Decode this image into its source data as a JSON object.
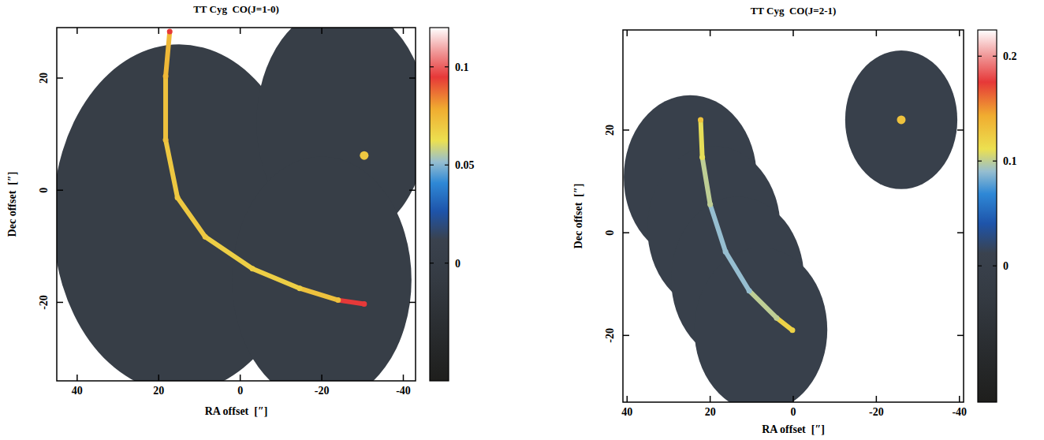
{
  "chart_data": [
    {
      "type": "heatmap",
      "title": "TT Cyg  CO(J=1-0)",
      "x_label": "RA offset  [″]",
      "y_label": "Dec offset  [″]",
      "xlim": [
        45,
        -43
      ],
      "ylim": [
        -34,
        29
      ],
      "xticks": [
        40,
        20,
        0,
        -20,
        -40
      ],
      "yticks": [
        20,
        0,
        -20
      ],
      "colorbar_lim": [
        -0.06,
        0.12
      ],
      "colorbar_ticks": [
        0,
        0.05,
        0.1
      ],
      "coverage": [
        {
          "x": 15,
          "y": -5,
          "r": 31
        },
        {
          "x": -25,
          "y": 12,
          "r": 21
        },
        {
          "x": -20,
          "y": -16,
          "r": 22
        }
      ],
      "shell": {
        "x": [
          17.3,
          18.3,
          18.3,
          15.4,
          8.6,
          -3,
          -14.6,
          -24,
          -30.4
        ],
        "y": [
          28.3,
          20.3,
          9,
          -1.3,
          -8.3,
          -14,
          -17.5,
          -19.6,
          -20.3
        ],
        "intensity": [
          0.095,
          0.075,
          0.072,
          0.07,
          0.07,
          0.068,
          0.068,
          0.072,
          0.095
        ]
      },
      "point_source": {
        "x": -30.4,
        "y": 6.2,
        "intensity": 0.07
      }
    },
    {
      "type": "heatmap",
      "title": "TT Cyg  CO(J=2-1)",
      "x_label": "RA offset  [″]",
      "y_label": "Dec offset  [″]",
      "xlim": [
        41,
        -41
      ],
      "ylim": [
        -33,
        39.5
      ],
      "xticks": [
        40,
        20,
        0,
        -20,
        -40
      ],
      "yticks": [
        20,
        0,
        -20
      ],
      "colorbar_lim": [
        -0.13,
        0.225
      ],
      "colorbar_ticks": [
        0,
        0.1,
        0.2
      ],
      "coverage": [
        {
          "x": 24.8,
          "y": 10.8,
          "r": 16
        },
        {
          "x": 19.1,
          "y": 0.9,
          "r": 16
        },
        {
          "x": 13.4,
          "y": -9,
          "r": 16
        },
        {
          "x": 7.8,
          "y": -18.9,
          "r": 16
        },
        {
          "x": -26,
          "y": 22,
          "r": 13.5
        }
      ],
      "shell": {
        "x": [
          22.3,
          21.9,
          20,
          16.3,
          10.6,
          4,
          0.2
        ],
        "y": [
          22,
          14.7,
          5.5,
          -3.7,
          -11.3,
          -16.6,
          -19
        ],
        "intensity": [
          0.13,
          0.11,
          0.1,
          0.09,
          0.09,
          0.1,
          0.12
        ]
      },
      "point_source": {
        "x": -26,
        "y": 22,
        "intensity": 0.13
      }
    }
  ]
}
